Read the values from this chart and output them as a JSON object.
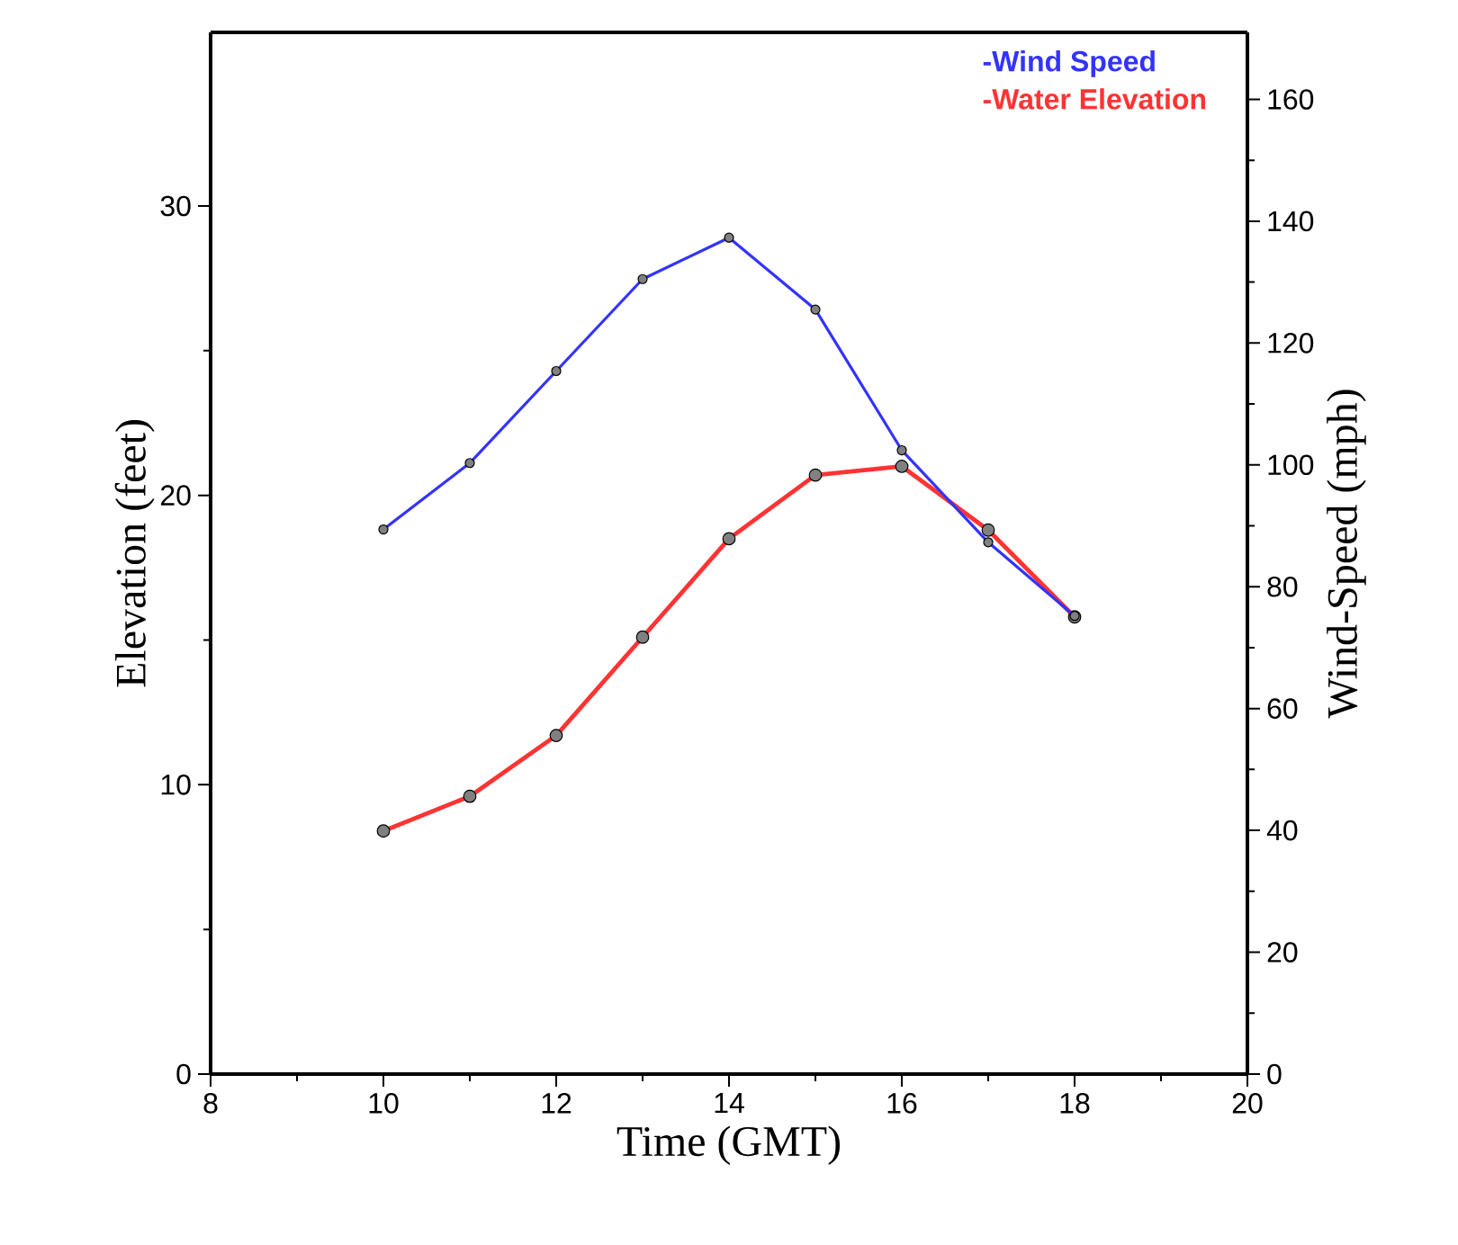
{
  "chart_data": {
    "type": "line",
    "xlabel": "Time (GMT)",
    "ylabel": "Elevation (feet)",
    "y2label": "Wind-Speed (mph)",
    "x": [
      10,
      11,
      12,
      13,
      14,
      15,
      16,
      17,
      18
    ],
    "series": [
      {
        "name": "-Wind Speed",
        "color": "#3333ff",
        "axis": "y2",
        "values": [
          89.4,
          100.3,
          115.4,
          130.5,
          137.3,
          125.5,
          102.4,
          87.3,
          75.2
        ]
      },
      {
        "name": "-Water Elevation",
        "color": "#ff3333",
        "values": [
          8.4,
          9.6,
          11.7,
          15.1,
          18.5,
          20.7,
          21.0,
          18.8,
          15.8
        ]
      }
    ],
    "xlim": [
      8,
      20
    ],
    "xticks": [
      8,
      10,
      12,
      14,
      16,
      18,
      20
    ],
    "ylim": [
      0,
      36
    ],
    "yticks": [
      0,
      10,
      20,
      30
    ],
    "y2lim": [
      0,
      171
    ],
    "y2ticks": [
      0,
      20,
      40,
      60,
      80,
      100,
      120,
      140,
      160
    ],
    "marker": "circle",
    "line_style": "solid",
    "grid": false,
    "legend": "top right"
  }
}
